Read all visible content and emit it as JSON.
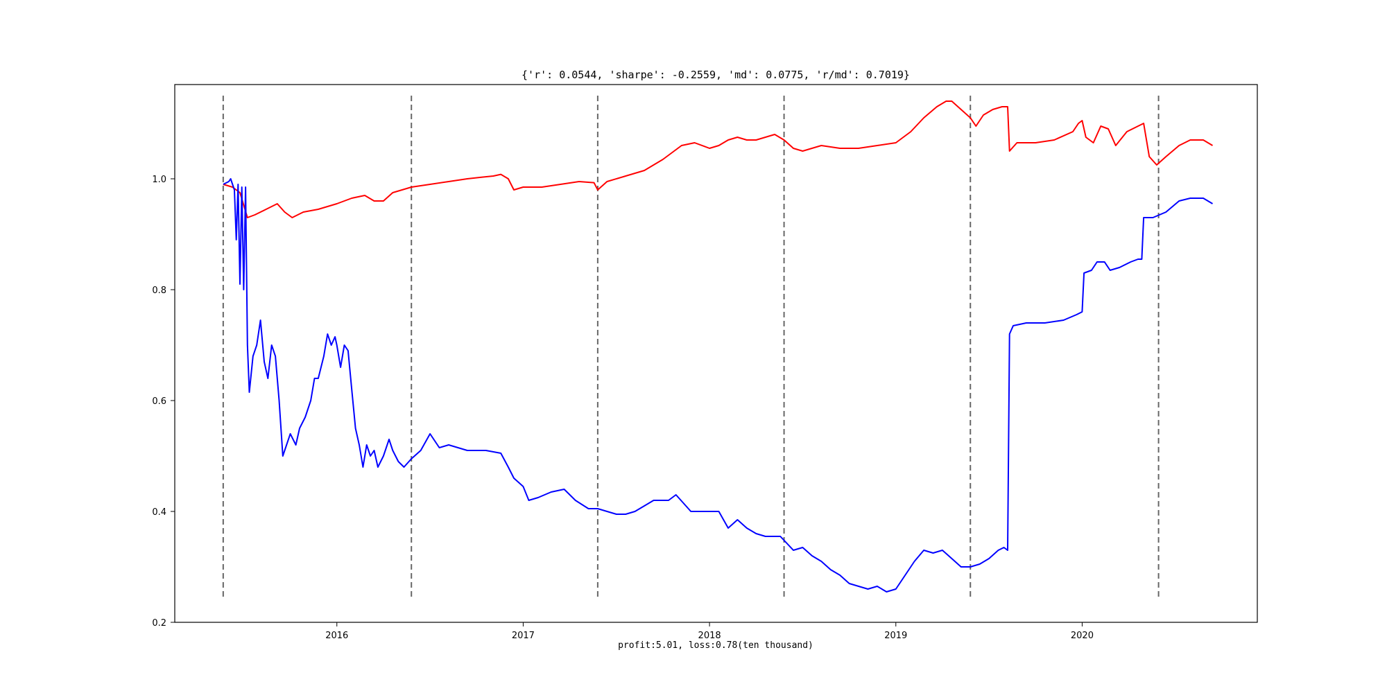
{
  "chart_data": {
    "type": "line",
    "title": "{'r': 0.0544, 'sharpe': -0.2559, 'md': 0.0775, 'r/md': 0.7019}",
    "xlabel": "profit:5.01, loss:0.78(ten thousand)",
    "ylabel": "",
    "xlim": [
      2015.13,
      2020.94
    ],
    "ylim": [
      0.2,
      1.17
    ],
    "x_ticks": [
      2016,
      2017,
      2018,
      2019,
      2020
    ],
    "x_tick_labels": [
      "2016",
      "2017",
      "2018",
      "2019",
      "2020"
    ],
    "y_ticks": [
      0.2,
      0.4,
      0.6,
      0.8,
      1.0
    ],
    "y_tick_labels": [
      "0.2",
      "0.4",
      "0.6",
      "0.8",
      "1.0"
    ],
    "grid": false,
    "legend": "none",
    "vlines": {
      "x": [
        2015.39,
        2016.4,
        2017.4,
        2018.4,
        2019.4,
        2020.41
      ],
      "ymin": 0.245,
      "ymax": 1.15,
      "style": "dashed",
      "color": "#666666"
    },
    "series": [
      {
        "color": "#ff0000",
        "points": [
          [
            2015.39,
            0.99
          ],
          [
            2015.44,
            0.985
          ],
          [
            2015.48,
            0.975
          ],
          [
            2015.52,
            0.93
          ],
          [
            2015.56,
            0.935
          ],
          [
            2015.62,
            0.945
          ],
          [
            2015.68,
            0.955
          ],
          [
            2015.72,
            0.94
          ],
          [
            2015.76,
            0.93
          ],
          [
            2015.82,
            0.94
          ],
          [
            2015.9,
            0.945
          ],
          [
            2016.0,
            0.955
          ],
          [
            2016.08,
            0.965
          ],
          [
            2016.15,
            0.97
          ],
          [
            2016.2,
            0.96
          ],
          [
            2016.25,
            0.96
          ],
          [
            2016.3,
            0.975
          ],
          [
            2016.35,
            0.98
          ],
          [
            2016.4,
            0.985
          ],
          [
            2016.5,
            0.99
          ],
          [
            2016.6,
            0.995
          ],
          [
            2016.7,
            1.0
          ],
          [
            2016.78,
            1.003
          ],
          [
            2016.84,
            1.005
          ],
          [
            2016.88,
            1.008
          ],
          [
            2016.92,
            1.0
          ],
          [
            2016.95,
            0.98
          ],
          [
            2017.0,
            0.985
          ],
          [
            2017.1,
            0.985
          ],
          [
            2017.2,
            0.99
          ],
          [
            2017.3,
            0.995
          ],
          [
            2017.38,
            0.993
          ],
          [
            2017.4,
            0.98
          ],
          [
            2017.45,
            0.995
          ],
          [
            2017.55,
            1.005
          ],
          [
            2017.65,
            1.015
          ],
          [
            2017.75,
            1.035
          ],
          [
            2017.85,
            1.06
          ],
          [
            2017.92,
            1.065
          ],
          [
            2018.0,
            1.055
          ],
          [
            2018.05,
            1.06
          ],
          [
            2018.1,
            1.07
          ],
          [
            2018.15,
            1.075
          ],
          [
            2018.2,
            1.07
          ],
          [
            2018.25,
            1.07
          ],
          [
            2018.3,
            1.075
          ],
          [
            2018.35,
            1.08
          ],
          [
            2018.4,
            1.07
          ],
          [
            2018.45,
            1.055
          ],
          [
            2018.5,
            1.05
          ],
          [
            2018.6,
            1.06
          ],
          [
            2018.7,
            1.055
          ],
          [
            2018.8,
            1.055
          ],
          [
            2018.9,
            1.06
          ],
          [
            2019.0,
            1.065
          ],
          [
            2019.08,
            1.085
          ],
          [
            2019.15,
            1.11
          ],
          [
            2019.22,
            1.13
          ],
          [
            2019.27,
            1.14
          ],
          [
            2019.3,
            1.14
          ],
          [
            2019.35,
            1.125
          ],
          [
            2019.4,
            1.11
          ],
          [
            2019.43,
            1.095
          ],
          [
            2019.47,
            1.115
          ],
          [
            2019.52,
            1.125
          ],
          [
            2019.57,
            1.13
          ],
          [
            2019.6,
            1.13
          ],
          [
            2019.61,
            1.05
          ],
          [
            2019.65,
            1.065
          ],
          [
            2019.75,
            1.065
          ],
          [
            2019.85,
            1.07
          ],
          [
            2019.95,
            1.085
          ],
          [
            2019.98,
            1.1
          ],
          [
            2020.0,
            1.105
          ],
          [
            2020.02,
            1.075
          ],
          [
            2020.06,
            1.065
          ],
          [
            2020.1,
            1.095
          ],
          [
            2020.14,
            1.09
          ],
          [
            2020.18,
            1.06
          ],
          [
            2020.24,
            1.085
          ],
          [
            2020.3,
            1.095
          ],
          [
            2020.33,
            1.1
          ],
          [
            2020.36,
            1.04
          ],
          [
            2020.4,
            1.025
          ],
          [
            2020.45,
            1.04
          ],
          [
            2020.52,
            1.06
          ],
          [
            2020.58,
            1.07
          ],
          [
            2020.65,
            1.07
          ],
          [
            2020.7,
            1.06
          ]
        ]
      },
      {
        "color": "#0000ff",
        "points": [
          [
            2015.39,
            0.99
          ],
          [
            2015.42,
            0.995
          ],
          [
            2015.43,
            1.0
          ],
          [
            2015.45,
            0.98
          ],
          [
            2015.46,
            0.89
          ],
          [
            2015.47,
            0.99
          ],
          [
            2015.48,
            0.81
          ],
          [
            2015.49,
            0.985
          ],
          [
            2015.5,
            0.8
          ],
          [
            2015.51,
            0.985
          ],
          [
            2015.52,
            0.7
          ],
          [
            2015.53,
            0.615
          ],
          [
            2015.55,
            0.68
          ],
          [
            2015.57,
            0.7
          ],
          [
            2015.59,
            0.745
          ],
          [
            2015.61,
            0.67
          ],
          [
            2015.63,
            0.64
          ],
          [
            2015.65,
            0.7
          ],
          [
            2015.67,
            0.68
          ],
          [
            2015.69,
            0.6
          ],
          [
            2015.71,
            0.5
          ],
          [
            2015.73,
            0.52
          ],
          [
            2015.75,
            0.54
          ],
          [
            2015.78,
            0.52
          ],
          [
            2015.8,
            0.55
          ],
          [
            2015.83,
            0.57
          ],
          [
            2015.86,
            0.6
          ],
          [
            2015.88,
            0.64
          ],
          [
            2015.9,
            0.64
          ],
          [
            2015.93,
            0.68
          ],
          [
            2015.95,
            0.72
          ],
          [
            2015.97,
            0.7
          ],
          [
            2015.99,
            0.715
          ],
          [
            2016.0,
            0.7
          ],
          [
            2016.02,
            0.66
          ],
          [
            2016.04,
            0.7
          ],
          [
            2016.06,
            0.69
          ],
          [
            2016.08,
            0.62
          ],
          [
            2016.1,
            0.55
          ],
          [
            2016.12,
            0.52
          ],
          [
            2016.14,
            0.48
          ],
          [
            2016.16,
            0.52
          ],
          [
            2016.18,
            0.5
          ],
          [
            2016.2,
            0.51
          ],
          [
            2016.22,
            0.48
          ],
          [
            2016.25,
            0.5
          ],
          [
            2016.28,
            0.53
          ],
          [
            2016.3,
            0.51
          ],
          [
            2016.33,
            0.49
          ],
          [
            2016.36,
            0.48
          ],
          [
            2016.4,
            0.495
          ],
          [
            2016.45,
            0.51
          ],
          [
            2016.5,
            0.54
          ],
          [
            2016.55,
            0.515
          ],
          [
            2016.6,
            0.52
          ],
          [
            2016.7,
            0.51
          ],
          [
            2016.8,
            0.51
          ],
          [
            2016.88,
            0.505
          ],
          [
            2016.92,
            0.48
          ],
          [
            2016.95,
            0.46
          ],
          [
            2017.0,
            0.445
          ],
          [
            2017.03,
            0.42
          ],
          [
            2017.08,
            0.425
          ],
          [
            2017.15,
            0.435
          ],
          [
            2017.22,
            0.44
          ],
          [
            2017.28,
            0.42
          ],
          [
            2017.35,
            0.405
          ],
          [
            2017.4,
            0.405
          ],
          [
            2017.45,
            0.4
          ],
          [
            2017.5,
            0.395
          ],
          [
            2017.55,
            0.395
          ],
          [
            2017.6,
            0.4
          ],
          [
            2017.65,
            0.41
          ],
          [
            2017.7,
            0.42
          ],
          [
            2017.78,
            0.42
          ],
          [
            2017.82,
            0.43
          ],
          [
            2017.86,
            0.415
          ],
          [
            2017.9,
            0.4
          ],
          [
            2018.0,
            0.4
          ],
          [
            2018.05,
            0.4
          ],
          [
            2018.1,
            0.37
          ],
          [
            2018.15,
            0.385
          ],
          [
            2018.2,
            0.37
          ],
          [
            2018.25,
            0.36
          ],
          [
            2018.3,
            0.355
          ],
          [
            2018.38,
            0.355
          ],
          [
            2018.45,
            0.33
          ],
          [
            2018.5,
            0.335
          ],
          [
            2018.55,
            0.32
          ],
          [
            2018.6,
            0.31
          ],
          [
            2018.65,
            0.295
          ],
          [
            2018.7,
            0.285
          ],
          [
            2018.75,
            0.27
          ],
          [
            2018.8,
            0.265
          ],
          [
            2018.85,
            0.26
          ],
          [
            2018.9,
            0.265
          ],
          [
            2018.95,
            0.255
          ],
          [
            2019.0,
            0.26
          ],
          [
            2019.05,
            0.285
          ],
          [
            2019.1,
            0.31
          ],
          [
            2019.15,
            0.33
          ],
          [
            2019.2,
            0.325
          ],
          [
            2019.25,
            0.33
          ],
          [
            2019.3,
            0.315
          ],
          [
            2019.35,
            0.3
          ],
          [
            2019.4,
            0.3
          ],
          [
            2019.45,
            0.305
          ],
          [
            2019.5,
            0.315
          ],
          [
            2019.55,
            0.33
          ],
          [
            2019.58,
            0.335
          ],
          [
            2019.6,
            0.33
          ],
          [
            2019.61,
            0.72
          ],
          [
            2019.63,
            0.735
          ],
          [
            2019.7,
            0.74
          ],
          [
            2019.8,
            0.74
          ],
          [
            2019.9,
            0.745
          ],
          [
            2019.97,
            0.755
          ],
          [
            2020.0,
            0.76
          ],
          [
            2020.01,
            0.83
          ],
          [
            2020.05,
            0.835
          ],
          [
            2020.08,
            0.85
          ],
          [
            2020.12,
            0.85
          ],
          [
            2020.15,
            0.835
          ],
          [
            2020.2,
            0.84
          ],
          [
            2020.26,
            0.85
          ],
          [
            2020.3,
            0.855
          ],
          [
            2020.32,
            0.855
          ],
          [
            2020.33,
            0.93
          ],
          [
            2020.38,
            0.93
          ],
          [
            2020.45,
            0.94
          ],
          [
            2020.52,
            0.96
          ],
          [
            2020.58,
            0.965
          ],
          [
            2020.65,
            0.965
          ],
          [
            2020.7,
            0.955
          ]
        ]
      }
    ]
  }
}
